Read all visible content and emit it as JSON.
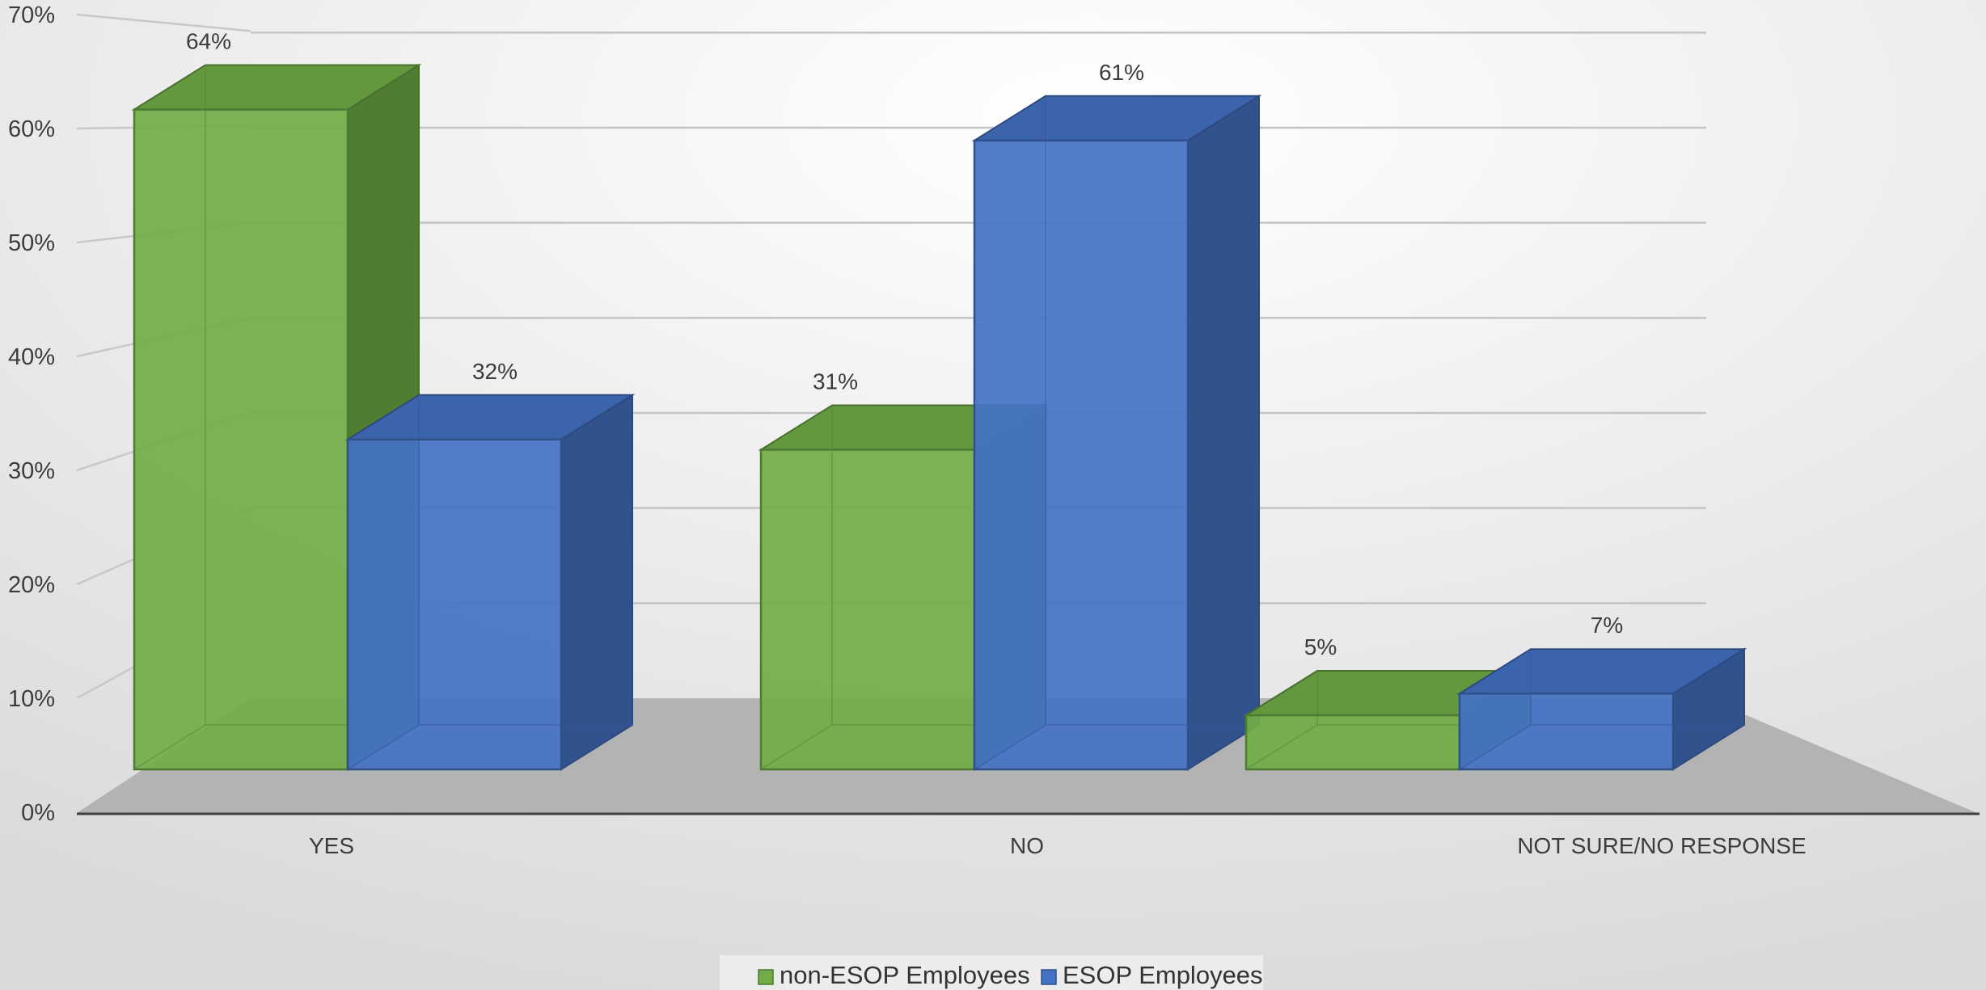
{
  "chart_data": {
    "type": "bar",
    "categories": [
      "YES",
      "NO",
      "NOT SURE/NO RESPONSE"
    ],
    "series": [
      {
        "name": "non-ESOP Employees",
        "values": [
          64,
          31,
          5
        ],
        "labels": [
          "64%",
          "31%",
          "5%"
        ],
        "color": "#70AD47"
      },
      {
        "name": "ESOP Employees",
        "values": [
          32,
          61,
          7
        ],
        "labels": [
          "32%",
          "61%",
          "7%"
        ],
        "color": "#4472C4"
      }
    ],
    "yticks": [
      "0%",
      "10%",
      "20%",
      "30%",
      "40%",
      "50%",
      "60%",
      "70%"
    ],
    "ylim": [
      0,
      70
    ],
    "grid": true,
    "legend_position": "bottom",
    "style": "3d-clustered-column"
  }
}
